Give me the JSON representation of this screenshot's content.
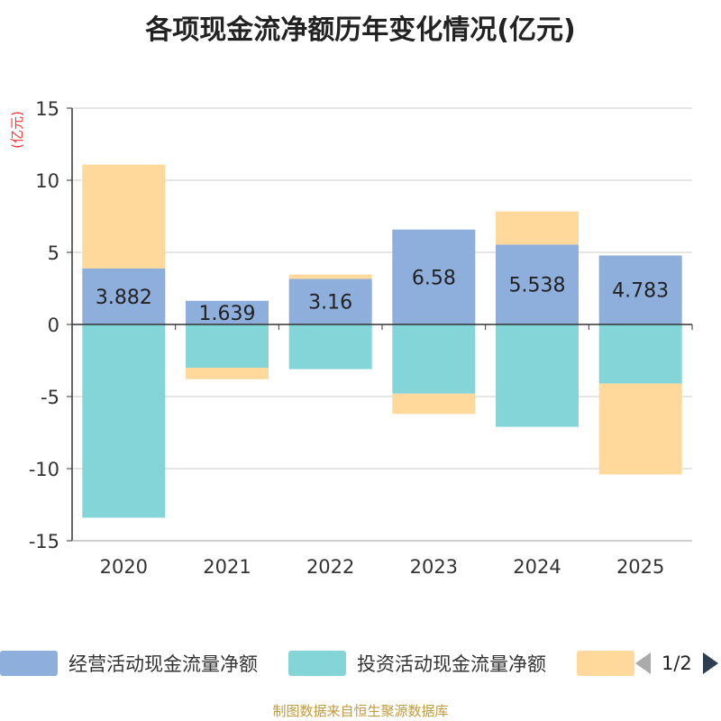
{
  "chart_data": {
    "type": "bar",
    "stacked": true,
    "title": "各项现金流净额历年变化情况(亿元)",
    "ylabel": "(亿元)",
    "xlabel": "",
    "categories": [
      "2020",
      "2021",
      "2022",
      "2023",
      "2024",
      "2025"
    ],
    "ylim": [
      -15,
      15
    ],
    "yticks": [
      15,
      10,
      5,
      0,
      -5,
      -10,
      -15
    ],
    "ytick_labels": [
      "15",
      "10",
      "5",
      "0",
      "-5",
      "-10",
      "-15"
    ],
    "grid": true,
    "series": [
      {
        "name": "经营活动现金流量净额",
        "color": "#8eaedc",
        "values": [
          3.882,
          1.639,
          3.16,
          6.58,
          5.538,
          4.783
        ],
        "data_labels": [
          "3.882",
          "1.639",
          "3.16",
          "6.58",
          "5.538",
          "4.783"
        ]
      },
      {
        "name": "投资活动现金流量净额",
        "color": "#83d5d7",
        "values": [
          -13.4,
          -3.0,
          -3.1,
          -4.8,
          -7.1,
          -4.1
        ]
      },
      {
        "name": "",
        "color": "#fed99b",
        "values": [
          7.2,
          -0.8,
          0.3,
          -1.4,
          2.3,
          -6.3
        ]
      }
    ]
  },
  "legend": {
    "items": [
      {
        "label": "经营活动现金流量净额",
        "color": "#8eaedc"
      },
      {
        "label": "投资活动现金流量净额",
        "color": "#83d5d7"
      },
      {
        "label": "",
        "color": "#fed99b"
      }
    ],
    "page_indicator": "1/2"
  },
  "footer": {
    "source": "制图数据来自恒生聚源数据库"
  },
  "colors": {
    "axis_label": "#ff3333",
    "grid": "#dddddd",
    "axis": "#333333",
    "source_text": "#c09a3c"
  }
}
